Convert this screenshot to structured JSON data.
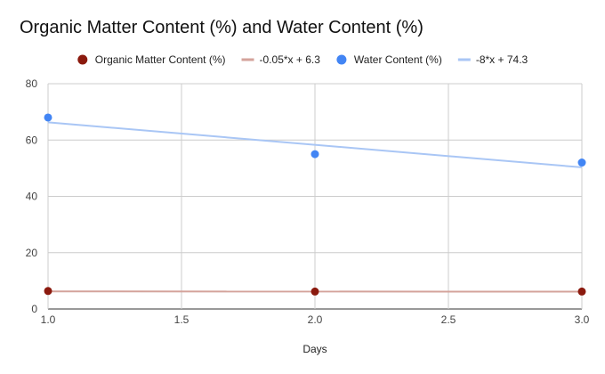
{
  "chart_data": {
    "type": "scatter",
    "title": "Organic Matter Content (%) and Water Content (%)",
    "xlabel": "Days",
    "ylabel": "",
    "xlim": [
      1.0,
      3.0
    ],
    "ylim": [
      0,
      80
    ],
    "x_ticks": [
      "1.0",
      "1.5",
      "2.0",
      "2.5",
      "3.0"
    ],
    "y_ticks": [
      "0",
      "20",
      "40",
      "60",
      "80"
    ],
    "grid": true,
    "legend_position": "top",
    "series": [
      {
        "name": "Organic Matter Content (%)",
        "kind": "points",
        "color": "#8b1a0e",
        "x": [
          1.0,
          2.0,
          3.0
        ],
        "y": [
          6.4,
          6.2,
          6.2
        ]
      },
      {
        "name": "-0.05*x + 6.3",
        "kind": "trendline",
        "color": "#d4a39b",
        "slope": -0.05,
        "intercept": 6.3
      },
      {
        "name": "Water Content (%)",
        "kind": "points",
        "color": "#4285f4",
        "x": [
          1.0,
          2.0,
          3.0
        ],
        "y": [
          68,
          55,
          52
        ]
      },
      {
        "name": "-8*x + 74.3",
        "kind": "trendline",
        "color": "#a9c6f5",
        "slope": -8,
        "intercept": 74.3
      }
    ]
  }
}
